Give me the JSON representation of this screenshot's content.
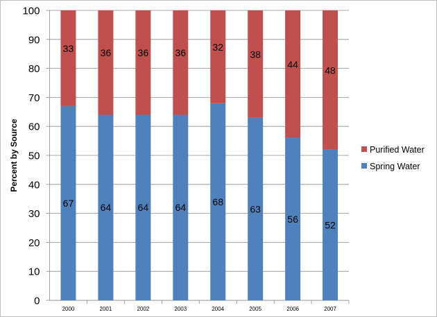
{
  "chart_data": {
    "type": "bar",
    "stacked": true,
    "title": "",
    "xlabel": "",
    "ylabel": "Percent by Source",
    "ylim": [
      0,
      100
    ],
    "yticks": [
      0,
      10,
      20,
      30,
      40,
      50,
      60,
      70,
      80,
      90,
      100
    ],
    "grid": true,
    "legend_position": "right",
    "categories": [
      "2000",
      "2001",
      "2002",
      "2003",
      "2004",
      "2005",
      "2006",
      "2007"
    ],
    "series": [
      {
        "name": "Spring Water",
        "color": "#4f81bd",
        "values": [
          67,
          64,
          64,
          64,
          68,
          63,
          56,
          52
        ]
      },
      {
        "name": "Purified Water",
        "color": "#c0504d",
        "values": [
          33,
          36,
          36,
          36,
          32,
          38,
          44,
          48
        ]
      }
    ]
  }
}
